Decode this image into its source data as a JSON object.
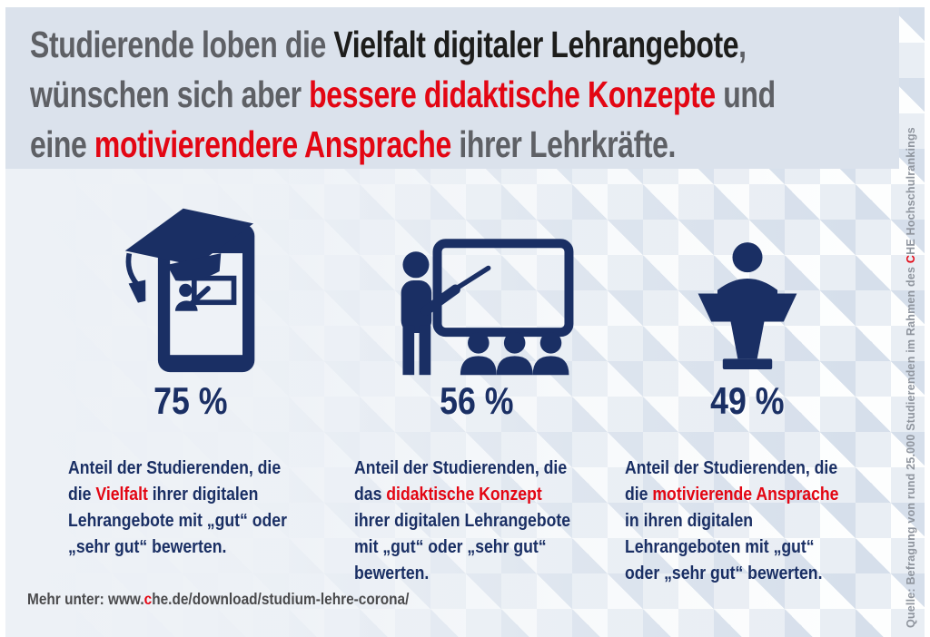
{
  "colors": {
    "navy": "#1a2f64",
    "red": "#e30613",
    "gray": "#5e6065",
    "black": "#1d1d1b",
    "footer_gray": "#4a4a4c",
    "source_gray": "#8f959e",
    "header_bg": "#dbe2ec",
    "screen_light": "#eef2f7"
  },
  "header": {
    "lines": [
      [
        {
          "text": "Studierende loben die ",
          "color": "gray"
        },
        {
          "text": "Vielfalt digitaler Lehrangebote",
          "color": "black"
        },
        {
          "text": ",",
          "color": "gray"
        }
      ],
      [
        {
          "text": "wünschen sich aber ",
          "color": "gray"
        },
        {
          "text": "bessere didaktische Konzepte",
          "color": "red"
        },
        {
          "text": " und",
          "color": "gray"
        }
      ],
      [
        {
          "text": "eine ",
          "color": "gray"
        },
        {
          "text": "motivierendere Ansprache",
          "color": "red"
        },
        {
          "text": " ihrer Lehrkräfte.",
          "color": "gray"
        }
      ]
    ]
  },
  "stats": [
    {
      "icon": "smartphone-graduation-cap",
      "percent": "75 %",
      "description_lines": [
        [
          {
            "text": "Anteil der Studierenden, die",
            "color": "navy"
          }
        ],
        [
          {
            "text": "die ",
            "color": "navy"
          },
          {
            "text": "Vielfalt",
            "color": "red"
          },
          {
            "text": " ihrer digitalen",
            "color": "navy"
          }
        ],
        [
          {
            "text": "Lehrangebote mit „gut“ oder",
            "color": "navy"
          }
        ],
        [
          {
            "text": "„sehr gut“ bewerten.",
            "color": "navy"
          }
        ]
      ]
    },
    {
      "icon": "teacher-whiteboard-audience",
      "percent": "56 %",
      "description_lines": [
        [
          {
            "text": "Anteil der Studierenden, die",
            "color": "navy"
          }
        ],
        [
          {
            "text": "das ",
            "color": "navy"
          },
          {
            "text": "didaktische Konzept",
            "color": "red"
          }
        ],
        [
          {
            "text": "ihrer digitalen Lehrangebote",
            "color": "navy"
          }
        ],
        [
          {
            "text": "mit „gut“ oder „sehr gut“",
            "color": "navy"
          }
        ],
        [
          {
            "text": "bewerten.",
            "color": "navy"
          }
        ]
      ]
    },
    {
      "icon": "speaker-lectern",
      "percent": "49 %",
      "description_lines": [
        [
          {
            "text": "Anteil der Studierenden, die",
            "color": "navy"
          }
        ],
        [
          {
            "text": "die ",
            "color": "navy"
          },
          {
            "text": "motivierende Ansprache",
            "color": "red"
          }
        ],
        [
          {
            "text": "in ihren digitalen",
            "color": "navy"
          }
        ],
        [
          {
            "text": "Lehrangeboten mit „gut“",
            "color": "navy"
          }
        ],
        [
          {
            "text": "oder „sehr gut“ bewerten.",
            "color": "navy"
          }
        ]
      ]
    }
  ],
  "footer": {
    "segments": [
      {
        "text": "Mehr unter: www.",
        "color": "footer_gray"
      },
      {
        "text": "c",
        "color": "red"
      },
      {
        "text": "he.de/download/studium-lehre-corona/",
        "color": "footer_gray"
      }
    ]
  },
  "source": {
    "segments": [
      {
        "text": "Quelle: Befragung von rund 25.000 Studierenden im Rahmen des ",
        "color": "source_gray"
      },
      {
        "text": "C",
        "color": "red"
      },
      {
        "text": "HE Hochschulrankings",
        "color": "source_gray"
      }
    ]
  },
  "chart_data": {
    "type": "bar",
    "title": "Studierende loben die Vielfalt digitaler Lehrangebote, wünschen sich aber bessere didaktische Konzepte und eine motivierendere Ansprache ihrer Lehrkräfte.",
    "categories": [
      "Vielfalt digitaler Lehrangebote",
      "Didaktisches Konzept digitaler Lehrangebote",
      "Motivierende Ansprache in digitalen Lehrangeboten"
    ],
    "values": [
      75,
      56,
      49
    ],
    "unit": "%",
    "value_labels": [
      "75 %",
      "56 %",
      "49 %"
    ],
    "ylim": [
      0,
      100
    ],
    "notes": "Anteil der Studierenden, die mit „gut“ oder „sehr gut“ bewerten.",
    "source": "Quelle: Befragung von rund 25.000 Studierenden im Rahmen des CHE Hochschulrankings",
    "more_info": "Mehr unter: www.che.de/download/studium-lehre-corona/"
  }
}
